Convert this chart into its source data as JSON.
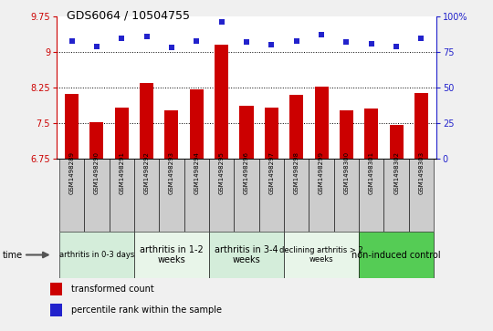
{
  "title": "GDS6064 / 10504755",
  "samples": [
    "GSM1498289",
    "GSM1498290",
    "GSM1498291",
    "GSM1498292",
    "GSM1498293",
    "GSM1498294",
    "GSM1498295",
    "GSM1498296",
    "GSM1498297",
    "GSM1498298",
    "GSM1498299",
    "GSM1498300",
    "GSM1498301",
    "GSM1498302",
    "GSM1498303"
  ],
  "bar_values": [
    8.12,
    7.52,
    7.84,
    8.35,
    7.78,
    8.22,
    9.15,
    7.87,
    7.83,
    8.1,
    8.28,
    7.78,
    7.82,
    7.47,
    8.13
  ],
  "dot_pct": [
    83,
    79,
    85,
    86,
    78,
    83,
    96,
    82,
    80,
    83,
    87,
    82,
    81,
    79,
    85
  ],
  "bar_color": "#CC0000",
  "dot_color": "#2222CC",
  "ylim_left": [
    6.75,
    9.75
  ],
  "ylim_right": [
    0,
    100
  ],
  "yticks_left": [
    6.75,
    7.5,
    8.25,
    9.0,
    9.75
  ],
  "yticks_right": [
    0,
    25,
    50,
    75,
    100
  ],
  "ytick_labels_left": [
    "6.75",
    "7.5",
    "8.25",
    "9",
    "9.75"
  ],
  "ytick_labels_right": [
    "0",
    "25",
    "50",
    "75",
    "100%"
  ],
  "groups": [
    {
      "label": "arthritis in 0-3 days",
      "start": 0,
      "end": 3,
      "color": "#d4edda",
      "fontsize": 6
    },
    {
      "label": "arthritis in 1-2\nweeks",
      "start": 3,
      "end": 6,
      "color": "#e8f5e9",
      "fontsize": 7
    },
    {
      "label": "arthritis in 3-4\nweeks",
      "start": 6,
      "end": 9,
      "color": "#d4edda",
      "fontsize": 7
    },
    {
      "label": "declining arthritis > 2\nweeks",
      "start": 9,
      "end": 12,
      "color": "#e8f5e9",
      "fontsize": 6
    },
    {
      "label": "non-induced control",
      "start": 12,
      "end": 15,
      "color": "#55cc55",
      "fontsize": 7
    }
  ],
  "time_label": "time",
  "legend_bar": "transformed count",
  "legend_dot": "percentile rank within the sample",
  "background_color": "#f0f0f0",
  "plot_bg": "#ffffff",
  "cell_color": "#cccccc"
}
